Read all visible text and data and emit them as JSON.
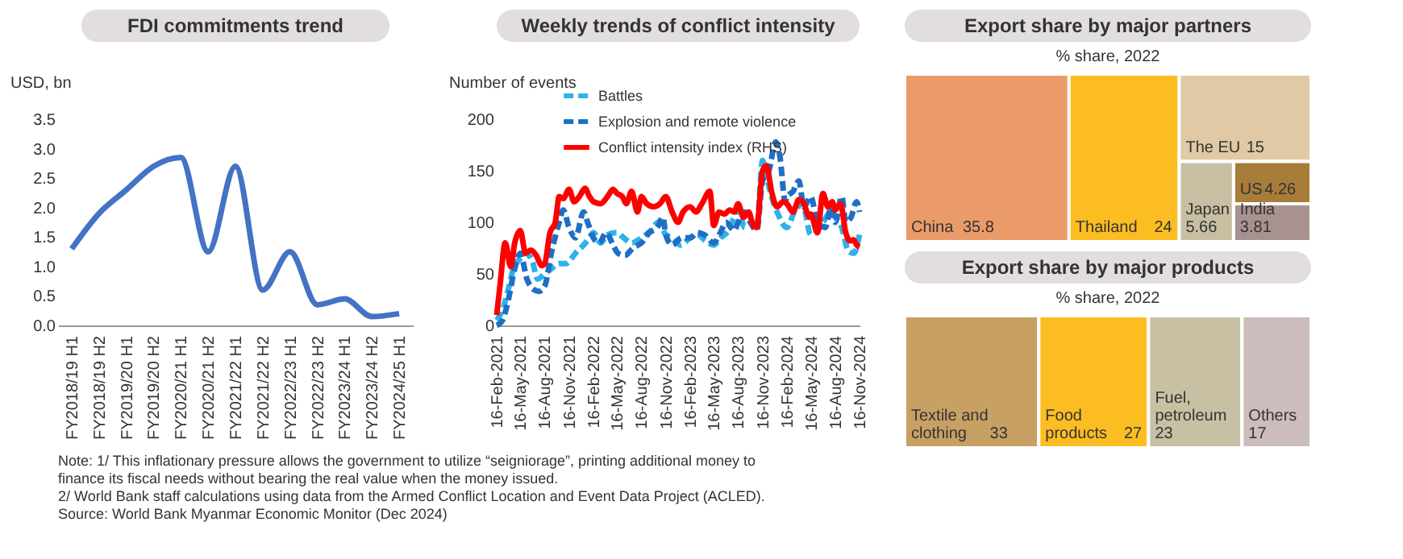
{
  "chart_data": [
    {
      "type": "line",
      "title": "FDI commitments trend",
      "ylabel": "USD, bn",
      "categories": [
        "FY2018/19 H1",
        "FY2018/19 H2",
        "FY2019/20 H1",
        "FY2019/20 H2",
        "FY2020/21 H1",
        "FY2020/21 H2",
        "FY2021/22 H1",
        "FY2021/22 H2",
        "FY2022/23 H1",
        "FY2022/23 H2",
        "FY2023/24 H1",
        "FY2023/24 H2",
        "FY2024/25 H1"
      ],
      "series": [
        {
          "color": "#4472c4",
          "values": [
            1.3,
            1.9,
            2.3,
            2.7,
            2.85,
            1.25,
            2.7,
            0.6,
            1.25,
            0.35,
            0.45,
            0.15,
            0.2
          ]
        }
      ],
      "ylim": [
        0,
        3.5
      ],
      "yticks": [
        {
          "value": 0,
          "label": "0.0"
        },
        0.5,
        {
          "value": 1,
          "label": "1.0"
        },
        1.5,
        {
          "value": 2,
          "label": "2.0"
        },
        2.5,
        {
          "value": 3,
          "label": "3.0"
        },
        3.5
      ],
      "grid": false,
      "line_style": "solid",
      "marker": "none",
      "annotations": [
        "Note: 1/ This inflationary pressure allows the government to utilize “seigniorage”, printing additional money to finance its fiscal needs without bearing the real value when the money issued.",
        "2/ World Bank staff calculations using data from the Armed Conflict Location and Event Data Project (ACLED).",
        "Source: World Bank Myanmar Economic Monitor (Dec 2024)"
      ]
    },
    {
      "type": "line",
      "title": "Weekly trends of conflict intensity",
      "ylabel": "Number of events",
      "series": [
        {
          "name": "Battles",
          "color": "#2db2ea",
          "line_style": "dashed",
          "x": [
            "2021-02-16",
            "2021-03-10",
            "2021-04-01",
            "2021-04-20",
            "2021-05-16",
            "2021-06-05",
            "2021-07-01",
            "2021-07-20",
            "2021-08-16",
            "2021-09-10",
            "2021-10-10",
            "2021-11-05",
            "2021-11-16",
            "2021-12-10",
            "2022-01-10",
            "2022-02-01",
            "2022-02-16",
            "2022-03-15",
            "2022-04-10",
            "2022-05-16",
            "2022-06-10",
            "2022-07-10",
            "2022-08-16",
            "2022-09-20",
            "2022-10-20",
            "2022-11-16",
            "2022-12-10",
            "2023-01-10",
            "2023-02-16",
            "2023-03-15",
            "2023-04-15",
            "2023-05-16",
            "2023-06-10",
            "2023-07-10",
            "2023-08-01",
            "2023-08-16",
            "2023-09-10",
            "2023-10-10",
            "2023-10-25",
            "2023-11-16",
            "2023-12-01",
            "2023-12-20",
            "2024-01-10",
            "2024-02-16",
            "2024-03-15",
            "2024-04-15",
            "2024-05-16",
            "2024-06-05",
            "2024-07-01",
            "2024-08-01",
            "2024-08-16",
            "2024-09-10",
            "2024-10-05",
            "2024-10-25",
            "2024-11-16"
          ],
          "values": [
            5,
            15,
            35,
            55,
            65,
            70,
            62,
            45,
            50,
            55,
            60,
            60,
            62,
            70,
            78,
            85,
            90,
            80,
            88,
            90,
            85,
            80,
            85,
            92,
            100,
            88,
            85,
            78,
            85,
            88,
            82,
            78,
            85,
            92,
            105,
            112,
            95,
            100,
            95,
            160,
            145,
            125,
            110,
            95,
            110,
            118,
            88,
            90,
            100,
            110,
            105,
            95,
            72,
            70,
            88
          ]
        },
        {
          "name": "Explosion and remote violence",
          "color": "#1f6fc5",
          "line_style": "dashed",
          "x": [
            "2021-02-16",
            "2021-03-10",
            "2021-04-01",
            "2021-04-25",
            "2021-05-16",
            "2021-06-10",
            "2021-07-05",
            "2021-07-25",
            "2021-08-16",
            "2021-09-10",
            "2021-10-10",
            "2021-10-25",
            "2021-11-16",
            "2021-12-10",
            "2022-01-10",
            "2022-01-25",
            "2022-02-16",
            "2022-03-10",
            "2022-04-05",
            "2022-05-01",
            "2022-05-20",
            "2022-06-15",
            "2022-07-15",
            "2022-08-16",
            "2022-09-15",
            "2022-10-15",
            "2022-11-05",
            "2022-11-16",
            "2022-12-10",
            "2023-01-15",
            "2023-02-16",
            "2023-03-15",
            "2023-04-10",
            "2023-05-16",
            "2023-06-10",
            "2023-07-01",
            "2023-08-01",
            "2023-08-16",
            "2023-09-10",
            "2023-10-01",
            "2023-10-25",
            "2023-11-16",
            "2023-12-10",
            "2024-01-05",
            "2024-01-20",
            "2024-02-10",
            "2024-02-16",
            "2024-03-10",
            "2024-04-01",
            "2024-04-20",
            "2024-05-16",
            "2024-06-10",
            "2024-07-10",
            "2024-08-01",
            "2024-08-16",
            "2024-09-10",
            "2024-09-25",
            "2024-10-15",
            "2024-11-05",
            "2024-11-16"
          ],
          "values": [
            0,
            5,
            25,
            55,
            70,
            45,
            35,
            33,
            38,
            70,
            100,
            112,
            95,
            85,
            110,
            100,
            85,
            80,
            90,
            78,
            70,
            68,
            75,
            80,
            90,
            95,
            105,
            88,
            78,
            85,
            85,
            90,
            88,
            80,
            90,
            100,
            92,
            100,
            110,
            100,
            92,
            140,
            150,
            178,
            165,
            120,
            125,
            130,
            140,
            115,
            125,
            100,
            95,
            115,
            100,
            125,
            100,
            105,
            120,
            110
          ]
        },
        {
          "name": "Conflict intensity index (RHS)",
          "color": "#ff0000",
          "line_style": "solid",
          "x": [
            "2021-02-16",
            "2021-03-01",
            "2021-03-20",
            "2021-04-10",
            "2021-04-25",
            "2021-05-16",
            "2021-06-05",
            "2021-06-25",
            "2021-07-15",
            "2021-08-05",
            "2021-08-16",
            "2021-09-05",
            "2021-09-25",
            "2021-10-10",
            "2021-10-25",
            "2021-11-16",
            "2021-12-05",
            "2021-12-25",
            "2022-01-15",
            "2022-02-01",
            "2022-02-16",
            "2022-03-15",
            "2022-04-10",
            "2022-05-01",
            "2022-05-16",
            "2022-06-05",
            "2022-06-20",
            "2022-07-10",
            "2022-08-01",
            "2022-08-16",
            "2022-09-05",
            "2022-10-01",
            "2022-10-25",
            "2022-11-16",
            "2022-12-10",
            "2023-01-01",
            "2023-01-20",
            "2023-02-16",
            "2023-03-10",
            "2023-04-01",
            "2023-05-01",
            "2023-05-16",
            "2023-06-05",
            "2023-06-25",
            "2023-07-15",
            "2023-08-01",
            "2023-08-16",
            "2023-09-05",
            "2023-09-25",
            "2023-10-10",
            "2023-10-25",
            "2023-11-16",
            "2023-12-01",
            "2023-12-20",
            "2024-01-10",
            "2024-02-01",
            "2024-02-16",
            "2024-03-10",
            "2024-04-01",
            "2024-04-20",
            "2024-05-10",
            "2024-05-16",
            "2024-06-10",
            "2024-07-01",
            "2024-07-20",
            "2024-08-05",
            "2024-08-16",
            "2024-09-05",
            "2024-09-25",
            "2024-10-10",
            "2024-10-25",
            "2024-11-05",
            "2024-11-16"
          ],
          "values": [
            10,
            40,
            80,
            57,
            80,
            92,
            70,
            73,
            68,
            58,
            60,
            90,
            100,
            125,
            123,
            132,
            120,
            125,
            133,
            125,
            120,
            118,
            125,
            132,
            128,
            125,
            118,
            130,
            110,
            125,
            118,
            115,
            118,
            125,
            110,
            100,
            110,
            115,
            110,
            118,
            130,
            97,
            110,
            108,
            112,
            110,
            118,
            105,
            110,
            98,
            95,
            150,
            155,
            130,
            115,
            120,
            118,
            110,
            122,
            118,
            105,
            108,
            90,
            128,
            115,
            120,
            112,
            118,
            90,
            82,
            83,
            78,
            76
          ]
        }
      ],
      "xlim": [
        "2021-02-16",
        "2024-11-16"
      ],
      "xticks": [
        {
          "value": "2021-02-16",
          "label": "16-Feb-2021"
        },
        {
          "value": "2021-05-16",
          "label": "16-May-2021"
        },
        {
          "value": "2021-08-16",
          "label": "16-Aug-2021"
        },
        {
          "value": "2021-11-16",
          "label": "16-Nov-2021"
        },
        {
          "value": "2022-02-16",
          "label": "16-Feb-2022"
        },
        {
          "value": "2022-05-16",
          "label": "16-May-2022"
        },
        {
          "value": "2022-08-16",
          "label": "16-Aug-2022"
        },
        {
          "value": "2022-11-16",
          "label": "16-Nov-2022"
        },
        {
          "value": "2023-02-16",
          "label": "16-Feb-2023"
        },
        {
          "value": "2023-05-16",
          "label": "16-May-2023"
        },
        {
          "value": "2023-08-16",
          "label": "16-Aug-2023"
        },
        {
          "value": "2023-11-16",
          "label": "16-Nov-2023"
        },
        {
          "value": "2024-02-16",
          "label": "16-Feb-2024"
        },
        {
          "value": "2024-05-16",
          "label": "16-May-2024"
        },
        {
          "value": "2024-08-16",
          "label": "16-Aug-2024"
        },
        {
          "value": "2024-11-16",
          "label": "16-Nov-2024"
        }
      ],
      "ylim": [
        0,
        200
      ],
      "yticks": [
        0,
        50,
        100,
        150,
        200
      ],
      "grid": false,
      "legend": "top left",
      "marker": "none"
    },
    {
      "type": "other",
      "title": "Export share by major partners",
      "subtitle": "% share, 2022",
      "categories": [
        "China",
        "Thailand",
        "The EU",
        "Japan",
        "US",
        "India"
      ],
      "values": [
        35.8,
        24,
        15,
        5.66,
        4.26,
        3.81
      ],
      "colors": [
        "#eb9b6a",
        "#fbbd22",
        "#e0c9a4",
        "#c8bfa2",
        "#a87d3a",
        "#a89290"
      ],
      "data_labels": true
    },
    {
      "type": "other",
      "title": "Export share by major products",
      "subtitle": "% share, 2022",
      "categories": [
        "Textile and clothing",
        "Food products",
        "Fuel, petroleum",
        "Others"
      ],
      "values": [
        33,
        27,
        23,
        17
      ],
      "colors": [
        "#c8a064",
        "#fbbd22",
        "#c8c0a3",
        "#ccbcbc"
      ],
      "data_labels": true
    }
  ]
}
